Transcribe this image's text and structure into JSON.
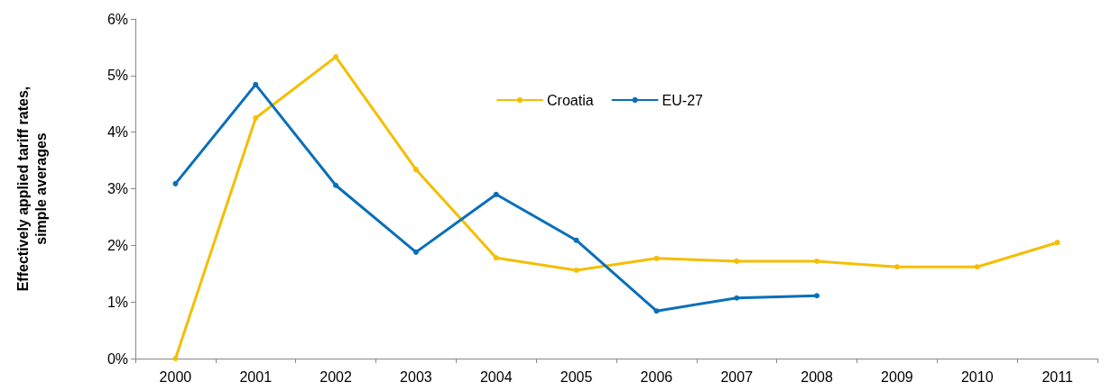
{
  "chart_data": {
    "type": "line",
    "ylabel": "Effectively applied tariff rates,\nsimple averages",
    "categories": [
      "2000",
      "2001",
      "2002",
      "2003",
      "2004",
      "2005",
      "2006",
      "2007",
      "2008",
      "2009",
      "2010",
      "2011"
    ],
    "series": [
      {
        "name": "Croatia",
        "color": "#f5be00",
        "values": [
          0,
          4.25,
          5.33,
          3.34,
          1.78,
          1.56,
          1.77,
          1.72,
          1.72,
          1.62,
          1.62,
          2.05
        ]
      },
      {
        "name": "EU-27",
        "color": "#0a6fb8",
        "values": [
          3.09,
          4.84,
          3.06,
          1.88,
          2.9,
          2.09,
          0.84,
          1.07,
          1.11,
          null,
          null,
          null
        ]
      }
    ],
    "ylim": [
      0,
      6
    ],
    "yticks": [
      {
        "value": 0,
        "label": "0%"
      },
      {
        "value": 1,
        "label": "1%"
      },
      {
        "value": 2,
        "label": "2%"
      },
      {
        "value": 3,
        "label": "3%"
      },
      {
        "value": 4,
        "label": "4%"
      },
      {
        "value": 5,
        "label": "5%"
      },
      {
        "value": 6,
        "label": "6%"
      }
    ],
    "grid": false,
    "legend": "top",
    "marker": "circle",
    "line_style": "solid"
  }
}
